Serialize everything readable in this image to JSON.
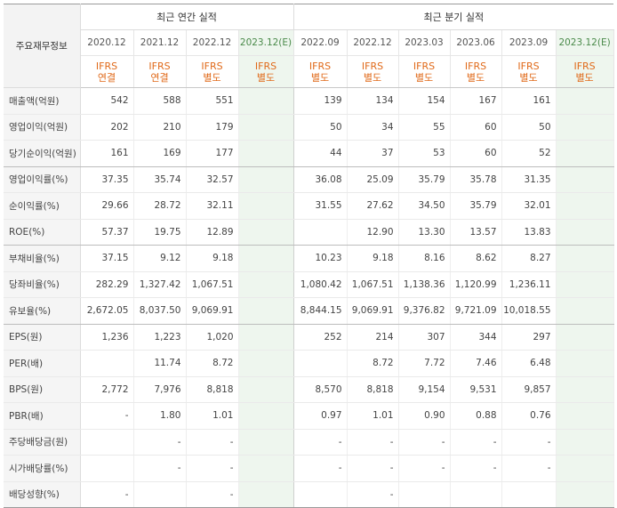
{
  "table": {
    "label_header": "주요재무정보",
    "groups": [
      "최근 연간 실적",
      "최근 분기 실적"
    ],
    "periods": [
      "2020.12",
      "2021.12",
      "2022.12",
      "2023.12(E)",
      "2022.09",
      "2022.12",
      "2023.03",
      "2023.06",
      "2023.09",
      "2023.12(E)"
    ],
    "types_line1": [
      "IFRS",
      "IFRS",
      "IFRS",
      "IFRS",
      "IFRS",
      "IFRS",
      "IFRS",
      "IFRS",
      "IFRS",
      "IFRS"
    ],
    "types_line2": [
      "연결",
      "연결",
      "별도",
      "별도",
      "별도",
      "별도",
      "별도",
      "별도",
      "별도",
      "별도"
    ],
    "rows": [
      {
        "label": "매출액(억원)",
        "values": [
          "542",
          "588",
          "551",
          "",
          "139",
          "134",
          "154",
          "167",
          "161",
          ""
        ]
      },
      {
        "label": "영업이익(억원)",
        "values": [
          "202",
          "210",
          "179",
          "",
          "50",
          "34",
          "55",
          "60",
          "50",
          ""
        ]
      },
      {
        "label": "당기순이익(억원)",
        "values": [
          "161",
          "169",
          "177",
          "",
          "44",
          "37",
          "53",
          "60",
          "52",
          ""
        ]
      },
      {
        "label": "영업이익률(%)",
        "values": [
          "37.35",
          "35.74",
          "32.57",
          "",
          "36.08",
          "25.09",
          "35.79",
          "35.78",
          "31.35",
          ""
        ]
      },
      {
        "label": "순이익률(%)",
        "values": [
          "29.66",
          "28.72",
          "32.11",
          "",
          "31.55",
          "27.62",
          "34.50",
          "35.79",
          "32.01",
          ""
        ]
      },
      {
        "label": "ROE(%)",
        "values": [
          "57.37",
          "19.75",
          "12.89",
          "",
          "",
          "12.90",
          "13.30",
          "13.57",
          "13.83",
          ""
        ]
      },
      {
        "label": "부채비율(%)",
        "values": [
          "37.15",
          "9.12",
          "9.18",
          "",
          "10.23",
          "9.18",
          "8.16",
          "8.62",
          "8.27",
          ""
        ]
      },
      {
        "label": "당좌비율(%)",
        "values": [
          "282.29",
          "1,327.42",
          "1,067.51",
          "",
          "1,080.42",
          "1,067.51",
          "1,138.36",
          "1,120.99",
          "1,236.11",
          ""
        ]
      },
      {
        "label": "유보율(%)",
        "values": [
          "2,672.05",
          "8,037.50",
          "9,069.91",
          "",
          "8,844.15",
          "9,069.91",
          "9,376.82",
          "9,721.09",
          "10,018.55",
          ""
        ]
      },
      {
        "label": "EPS(원)",
        "values": [
          "1,236",
          "1,223",
          "1,020",
          "",
          "252",
          "214",
          "307",
          "344",
          "297",
          ""
        ]
      },
      {
        "label": "PER(배)",
        "values": [
          "",
          "11.74",
          "8.72",
          "",
          "",
          "8.72",
          "7.72",
          "7.46",
          "6.48",
          ""
        ]
      },
      {
        "label": "BPS(원)",
        "values": [
          "2,772",
          "7,976",
          "8,818",
          "",
          "8,570",
          "8,818",
          "9,154",
          "9,531",
          "9,857",
          ""
        ]
      },
      {
        "label": "PBR(배)",
        "values": [
          "-",
          "1.80",
          "1.01",
          "",
          "0.97",
          "1.01",
          "0.90",
          "0.88",
          "0.76",
          ""
        ]
      },
      {
        "label": "주당배당금(원)",
        "values": [
          "",
          "-",
          "-",
          "",
          "-",
          "-",
          "-",
          "-",
          "-",
          ""
        ]
      },
      {
        "label": "시가배당률(%)",
        "values": [
          "",
          "-",
          "-",
          "",
          "-",
          "-",
          "-",
          "-",
          "-",
          ""
        ]
      },
      {
        "label": "배당성향(%)",
        "values": [
          "-",
          "",
          "-",
          "",
          "",
          "-",
          "",
          "",
          "",
          ""
        ]
      }
    ]
  }
}
